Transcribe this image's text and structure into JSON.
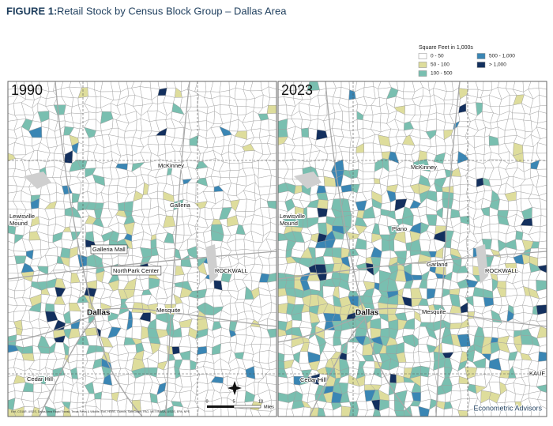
{
  "header": {
    "label": "FIGURE 1:",
    "title": "Retail Stock by Census Block Group – Dallas Area"
  },
  "legend": {
    "title": "Square Feet in 1,000s",
    "items": [
      {
        "label": "0 - 50",
        "color": "#ffffff"
      },
      {
        "label": "50 - 100",
        "color": "#dedd9c"
      },
      {
        "label": "100 - 500",
        "color": "#79bfb0"
      },
      {
        "label": "500 - 1,000",
        "color": "#3a86b4"
      },
      {
        "label": "> 1,000",
        "color": "#13305e"
      }
    ]
  },
  "panels": [
    {
      "year": "1990",
      "places": [
        "McKinney",
        "Galleria",
        "Lewisville",
        "Mound",
        "Galleria Mall",
        "NorthPark Center",
        "Dallas",
        "Mesquite",
        "ROCKWALL",
        "Cedar Hill"
      ]
    },
    {
      "year": "2023",
      "places": [
        "McKinney",
        "Lewisville",
        "Mound",
        "Plano",
        "Garland",
        "ROCKWALL",
        "Dallas",
        "Mesquite",
        "KAUF",
        "Cedar Hill"
      ]
    }
  ],
  "scale": {
    "ticks": [
      "0",
      "5",
      "10"
    ],
    "unit": "Miles"
  },
  "attribution": "Esri, CGIAR, USGS, Dallas Area Rapid Transit, Texas Parks & Wildlife, Esri, HERE, Garmin, SafeGraph, FAO, METI/NASA, USGS, EPA, NPS",
  "credit": "Econometric Advisors"
}
